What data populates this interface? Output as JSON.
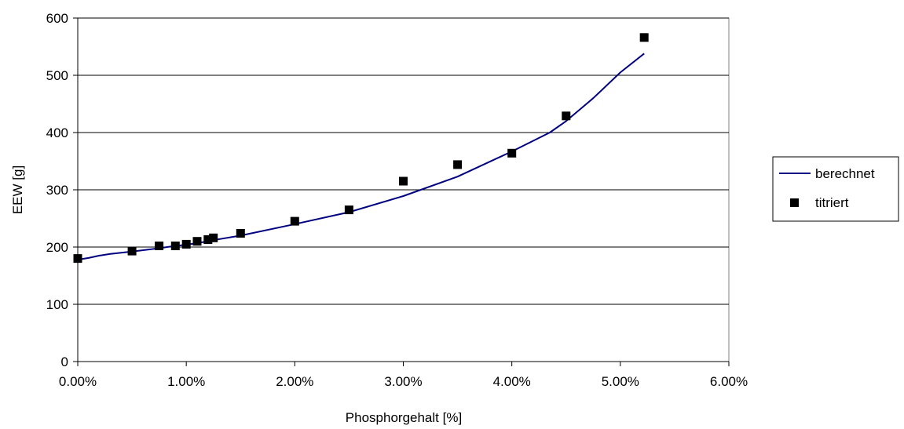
{
  "chart_data": {
    "type": "scatter",
    "title": "",
    "xlabel": "Phosphorgehalt [%]",
    "ylabel": "EEW [g]",
    "xlim": [
      0,
      6
    ],
    "ylim": [
      0,
      600
    ],
    "x_ticks": [
      "0.00%",
      "1.00%",
      "2.00%",
      "3.00%",
      "4.00%",
      "5.00%",
      "6.00%"
    ],
    "y_ticks": [
      "0",
      "100",
      "200",
      "300",
      "400",
      "500",
      "600"
    ],
    "grid": "horizontal",
    "legend": "right",
    "series": [
      {
        "name": "berechnet",
        "kind": "line",
        "color": "#000080",
        "x": [
          0.0,
          0.1,
          0.2,
          0.3,
          0.5,
          0.75,
          0.9,
          1.0,
          1.1,
          1.2,
          1.25,
          1.5,
          2.0,
          2.5,
          3.0,
          3.5,
          4.0,
          4.35,
          4.5,
          4.75,
          5.0,
          5.22
        ],
        "y": [
          178,
          181,
          185,
          188,
          192,
          198,
          202,
          204,
          207,
          210,
          212,
          220,
          240,
          261,
          289,
          323,
          367,
          400,
          420,
          460,
          505,
          538
        ]
      },
      {
        "name": "titriert",
        "kind": "scatter",
        "color": "#000000",
        "marker": "square",
        "x": [
          0.0,
          0.5,
          0.75,
          0.9,
          1.0,
          1.1,
          1.2,
          1.25,
          1.5,
          2.0,
          2.5,
          3.0,
          3.5,
          4.0,
          4.5,
          5.22
        ],
        "y": [
          180,
          193,
          202,
          202,
          205,
          210,
          213,
          216,
          224,
          245,
          265,
          315,
          344,
          364,
          429,
          566
        ]
      }
    ]
  }
}
